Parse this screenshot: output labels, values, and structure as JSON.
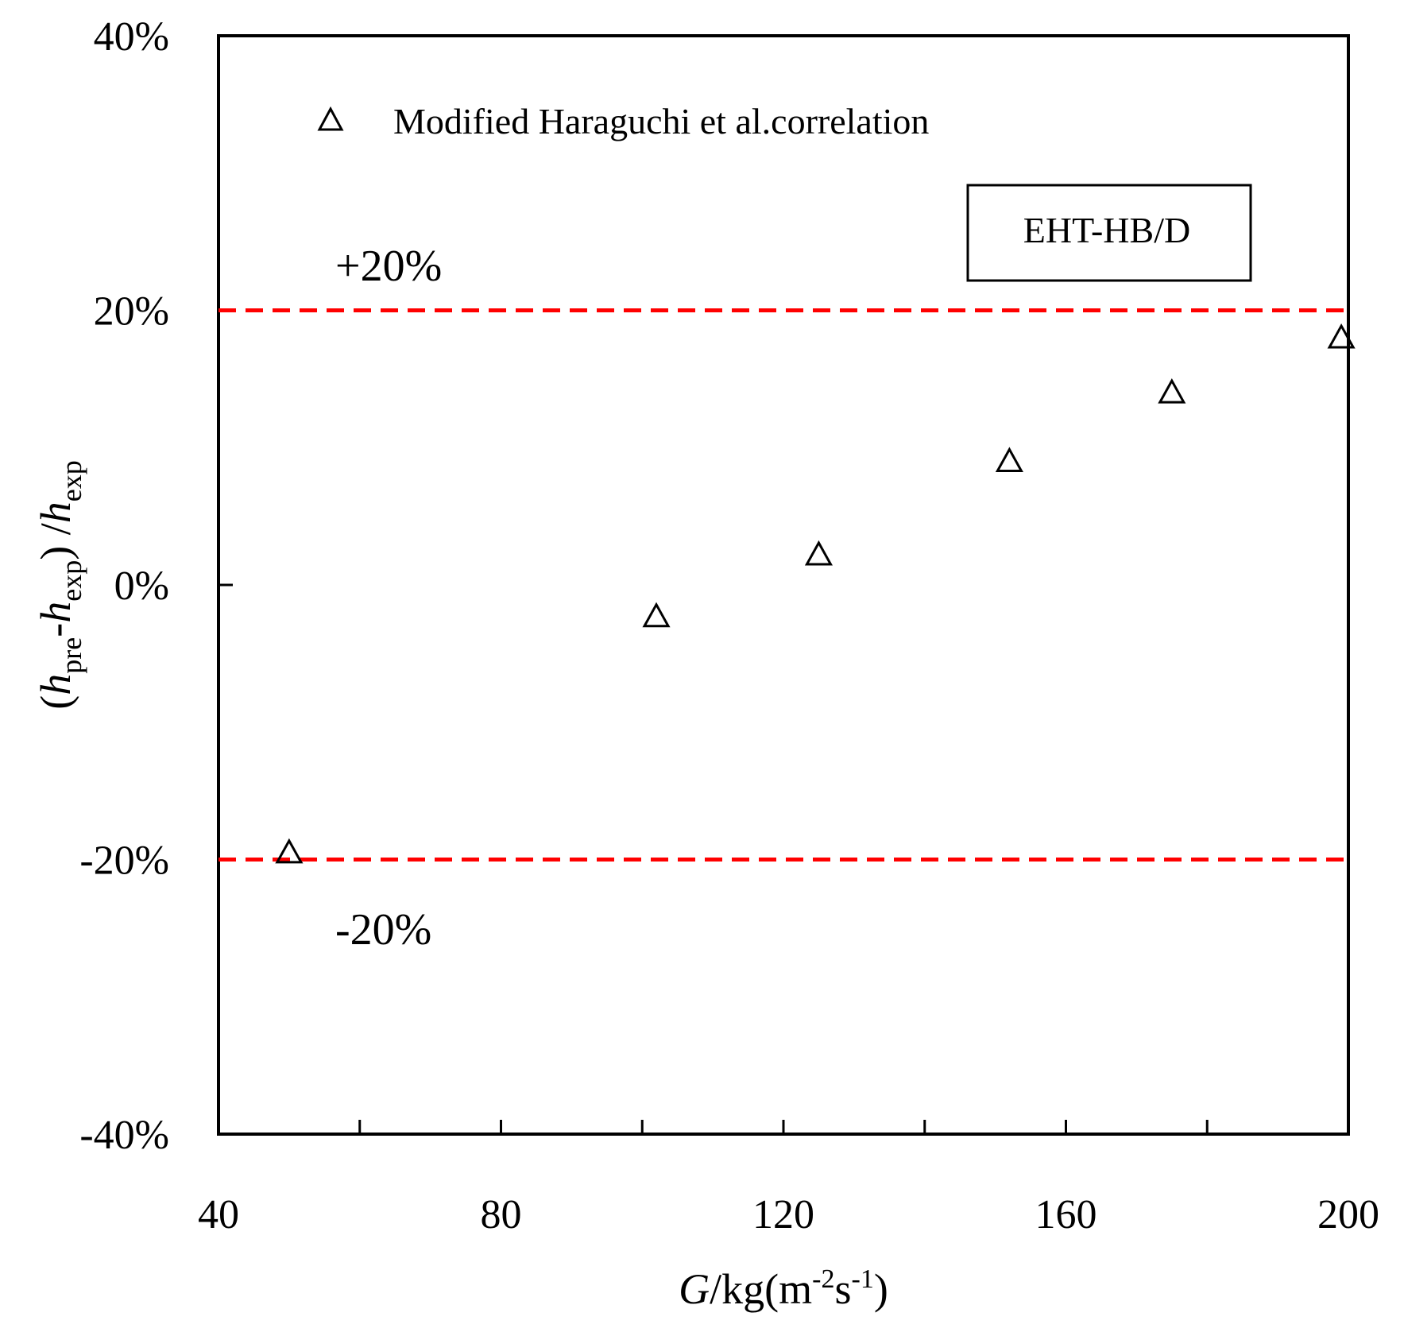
{
  "chart_data": {
    "type": "scatter",
    "title": "",
    "xlabel": {
      "italic": "G",
      "rest": "/kg(m",
      "sup1": "-2",
      "mid": "s",
      "sup2": "-1",
      "end": ")"
    },
    "ylabel": {
      "open": "(",
      "h1": "h",
      "sub1": "pre",
      "dash": "-",
      "h2": "h",
      "sub2": "exp",
      "close": ") /",
      "h3": "h",
      "sub3": "exp"
    },
    "xlim": [
      40,
      200
    ],
    "ylim": [
      -40,
      40
    ],
    "x_ticks": [
      40,
      80,
      120,
      160,
      200
    ],
    "x_tick_labels": [
      "40",
      "80",
      "120",
      "160",
      "200"
    ],
    "y_ticks": [
      -40,
      -20,
      0,
      20,
      40
    ],
    "y_tick_labels": [
      "-40%",
      "-20%",
      "0%",
      "20%",
      "40%"
    ],
    "grid": false,
    "series": [
      {
        "name": "Modified Haraguchi et al.correlation",
        "marker": "open-triangle",
        "color": "#000000",
        "x": [
          50,
          102,
          125,
          152,
          175,
          199
        ],
        "y": [
          -19.5,
          -2.3,
          2.2,
          9.0,
          14.0,
          18.0
        ]
      }
    ],
    "reference_lines": [
      {
        "y": 20,
        "label": "+20%",
        "color": "#ff0000",
        "style": "dashed"
      },
      {
        "y": -20,
        "label": "-20%",
        "color": "#ff0000",
        "style": "dashed"
      }
    ],
    "annotation_box": "EHT-HB/D",
    "legend_position": "top-left"
  }
}
